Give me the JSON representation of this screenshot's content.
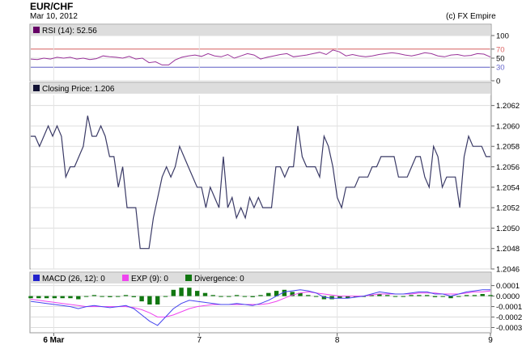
{
  "header": {
    "title": "EUR/CHF",
    "date": "Mar 10, 2012",
    "copyright": "(c) FX Empire"
  },
  "colors": {
    "price_line": "#3a3a66",
    "rsi_line": "#993399",
    "rsi_upper": "#dd6666",
    "rsi_lower": "#6666cc",
    "macd": "#4444ee",
    "exp": "#ee44ee",
    "divergence": "#117711",
    "panel_header": "#dddddd"
  },
  "chart_data": [
    {
      "type": "line",
      "panel": "rsi",
      "legend": "RSI (14): 52.56",
      "legend_swatch": "#660066",
      "ylim": [
        0,
        100
      ],
      "y_ticks": [
        "100",
        "70",
        "50",
        "30",
        "0"
      ],
      "y_tick_values": [
        100,
        70,
        50,
        30,
        0
      ],
      "upper_level": 70,
      "lower_level": 30,
      "x_ticks": [
        "6 Mar",
        "7",
        "8",
        "9"
      ],
      "x_tick_index": [
        3,
        22,
        40,
        60
      ],
      "values": [
        48,
        47,
        50,
        48,
        52,
        50,
        52,
        48,
        50,
        47,
        49,
        55,
        53,
        52,
        50,
        54,
        48,
        50,
        40,
        42,
        35,
        35,
        46,
        52,
        55,
        57,
        54,
        60,
        55,
        53,
        58,
        50,
        55,
        60,
        57,
        48,
        52,
        55,
        58,
        60,
        53,
        55,
        57,
        60,
        63,
        58,
        68,
        64,
        55,
        58,
        55,
        53,
        55,
        58,
        60,
        62,
        60,
        57,
        55,
        58,
        62,
        60,
        55,
        53,
        57,
        58,
        55,
        56,
        60,
        59,
        52.56
      ]
    },
    {
      "type": "line",
      "panel": "price",
      "legend": "Closing Price: 1.206",
      "legend_swatch": "#111133",
      "ylim": [
        1.2046,
        1.2063
      ],
      "y_ticks": [
        "1.2062",
        "1.2060",
        "1.2058",
        "1.2056",
        "1.2054",
        "1.2052",
        "1.2050",
        "1.2048",
        "1.2046"
      ],
      "y_tick_values": [
        1.2062,
        1.206,
        1.2058,
        1.2056,
        1.2054,
        1.2052,
        1.205,
        1.2048,
        1.2046
      ],
      "x_ticks": [
        "6 Mar",
        "7",
        "8",
        "9"
      ],
      "x_tick_index": [
        3,
        22,
        40,
        60
      ],
      "values": [
        1.2059,
        1.2059,
        1.2058,
        1.2059,
        1.206,
        1.2059,
        1.206,
        1.2059,
        1.2055,
        1.2056,
        1.2056,
        1.2057,
        1.2058,
        1.2061,
        1.2059,
        1.2059,
        1.206,
        1.2059,
        1.2057,
        1.2057,
        1.2054,
        1.2056,
        1.2052,
        1.2052,
        1.2052,
        1.2048,
        1.2048,
        1.2048,
        1.2051,
        1.2053,
        1.2055,
        1.2056,
        1.2055,
        1.2056,
        1.2058,
        1.2057,
        1.2056,
        1.2055,
        1.2054,
        1.2054,
        1.2052,
        1.2054,
        1.2053,
        1.2052,
        1.2057,
        1.2052,
        1.2053,
        1.2051,
        1.2052,
        1.2051,
        1.2053,
        1.2052,
        1.2053,
        1.2052,
        1.2052,
        1.2052,
        1.2056,
        1.2056,
        1.2055,
        1.2056,
        1.2056,
        1.206,
        1.2057,
        1.2056,
        1.2056,
        1.2056,
        1.2055,
        1.2059,
        1.2058,
        1.2056,
        1.2053,
        1.2052,
        1.2054,
        1.2054,
        1.2054,
        1.2055,
        1.2055,
        1.2055,
        1.2056,
        1.2056,
        1.2057,
        1.2057,
        1.2057,
        1.2057,
        1.2055,
        1.2055,
        1.2055,
        1.2056,
        1.2057,
        1.2057,
        1.2055,
        1.2054,
        1.2058,
        1.2057,
        1.2054,
        1.2055,
        1.2055,
        1.2055,
        1.2052,
        1.2057,
        1.2059,
        1.2058,
        1.2058,
        1.2058,
        1.2057,
        1.2057
      ]
    },
    {
      "type": "line",
      "panel": "macd",
      "legend_macd": "MACD (26, 12): 0",
      "legend_exp": "EXP (9): 0",
      "legend_div": "Divergence: 0",
      "ylim": [
        -0.00035,
        0.00012
      ],
      "y_ticks": [
        "0.0001",
        "0.0000",
        "-0.0001",
        "-0.0002",
        "-0.0003"
      ],
      "y_tick_values": [
        0.0001,
        0,
        -0.0001,
        -0.0002,
        -0.0003
      ],
      "x_ticks": [
        "6 Mar",
        "7",
        "8",
        "9"
      ],
      "x_tick_index": [
        3,
        22,
        40,
        60
      ],
      "macd": [
        -5e-05,
        -6e-05,
        -7e-05,
        -8e-05,
        -9e-05,
        -0.0001,
        -0.00012,
        -0.0001,
        -9e-05,
        -0.0001,
        -0.00011,
        -0.0001,
        -9e-05,
        -0.00012,
        -0.00018,
        -0.00024,
        -0.00028,
        -0.0002,
        -0.00012,
        -7e-05,
        -4e-05,
        -5e-05,
        -6e-05,
        -7e-05,
        -8e-05,
        -8e-05,
        -7e-05,
        -8e-05,
        -9e-05,
        -7e-05,
        -4e-05,
        0.0,
        4e-05,
        5e-05,
        6e-05,
        5e-05,
        3e-05,
        -1e-05,
        -2e-05,
        -2e-05,
        -2e-05,
        -1e-05,
        0.0,
        2e-05,
        4e-05,
        3e-05,
        2e-05,
        2e-05,
        3e-05,
        4e-05,
        4e-05,
        2e-05,
        2e-05,
        0.0,
        2e-05,
        4e-05,
        5e-05,
        6e-05,
        6e-05
      ],
      "exp": [
        -3e-05,
        -4e-05,
        -5e-05,
        -6e-05,
        -7e-05,
        -8e-05,
        -9e-05,
        -0.0001,
        -0.0001,
        -0.0001,
        -0.0001,
        -0.0001,
        -0.0001,
        -0.00011,
        -0.00013,
        -0.00016,
        -0.0002,
        -0.0002,
        -0.00018,
        -0.00015,
        -0.00012,
        -0.0001,
        -9e-05,
        -8e-05,
        -8e-05,
        -8e-05,
        -8e-05,
        -8e-05,
        -8e-05,
        -8e-05,
        -7e-05,
        -5e-05,
        -2e-05,
        1e-05,
        3e-05,
        4e-05,
        3e-05,
        2e-05,
        1e-05,
        0.0,
        0.0,
        0.0,
        0.0,
        1e-05,
        2e-05,
        2e-05,
        2e-05,
        2e-05,
        2e-05,
        3e-05,
        3e-05,
        3e-05,
        2e-05,
        2e-05,
        2e-05,
        3e-05,
        4e-05,
        4e-05,
        5e-05
      ],
      "divergence": [
        -2e-05,
        -2e-05,
        -2e-05,
        -2e-05,
        -2e-05,
        -2e-05,
        -3e-05,
        0.0,
        1e-05,
        0.0,
        -1e-05,
        0.0,
        1e-05,
        -1e-05,
        -5e-05,
        -8e-05,
        -8e-05,
        0.0,
        6e-05,
        8e-05,
        8e-05,
        5e-05,
        3e-05,
        1e-05,
        0.0,
        0.0,
        1e-05,
        0.0,
        -1e-05,
        1e-05,
        3e-05,
        5e-05,
        6e-05,
        4e-05,
        3e-05,
        1e-05,
        0.0,
        -3e-05,
        -3e-05,
        -2e-05,
        -2e-05,
        -1e-05,
        0.0,
        1e-05,
        2e-05,
        1e-05,
        0.0,
        0.0,
        1e-05,
        1e-05,
        1e-05,
        -1e-05,
        0.0,
        -2e-05,
        0.0,
        1e-05,
        1e-05,
        2e-05,
        1e-05
      ]
    }
  ]
}
